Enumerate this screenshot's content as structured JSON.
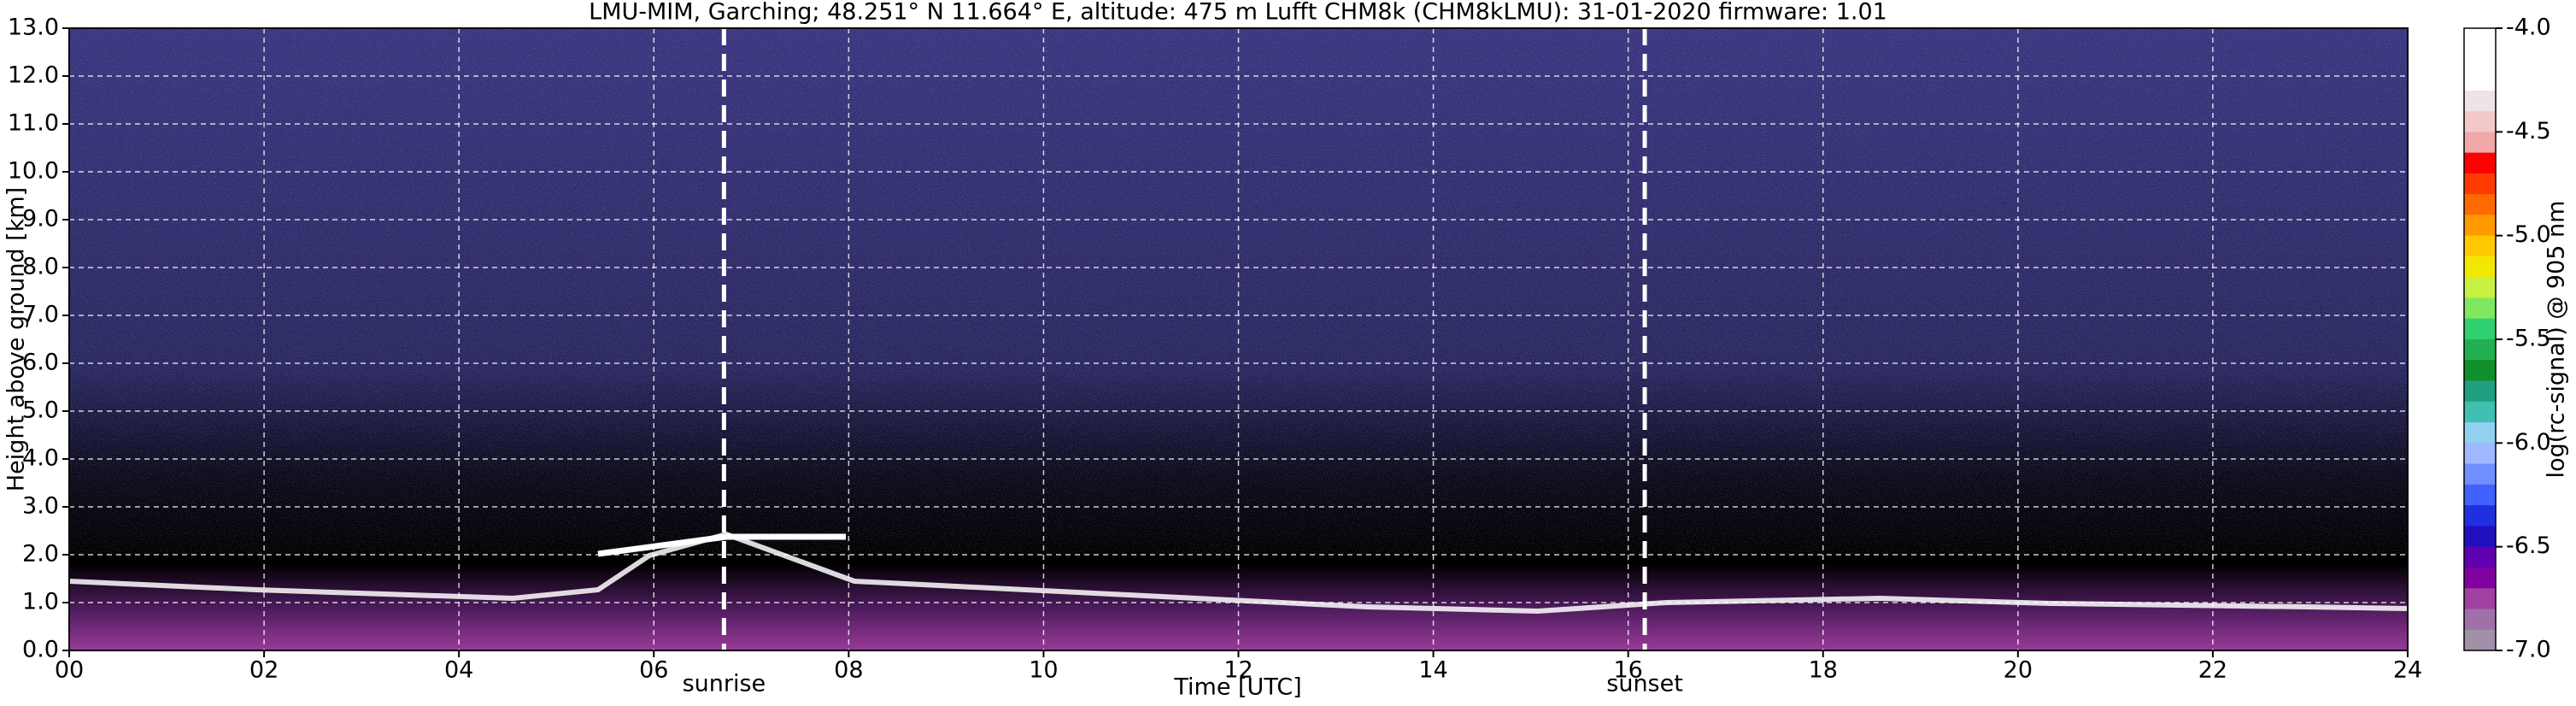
{
  "chart_data": {
    "type": "heatmap",
    "title": "LMU-MIM, Garching; 48.251° N 11.664° E, altitude: 475 m    Lufft CHM8k (CHM8kLMU): 31-01-2020    firmware: 1.01",
    "xlabel": "Time [UTC]",
    "ylabel": "Height above ground [km]",
    "xlim": [
      0,
      24
    ],
    "xticks": [
      {
        "value": 0,
        "label": "00"
      },
      {
        "value": 2,
        "label": "02"
      },
      {
        "value": 4,
        "label": "04"
      },
      {
        "value": 6,
        "label": "06"
      },
      {
        "value": 8,
        "label": "08"
      },
      10,
      12,
      14,
      16,
      18,
      20,
      22,
      24
    ],
    "ylim": [
      0,
      13
    ],
    "yticks": [
      {
        "value": 0,
        "label": "0.0"
      },
      {
        "value": 1,
        "label": "1.0"
      },
      {
        "value": 2,
        "label": "2.0"
      },
      {
        "value": 3,
        "label": "3.0"
      },
      {
        "value": 4,
        "label": "4.0"
      },
      {
        "value": 5,
        "label": "5.0"
      },
      {
        "value": 6,
        "label": "6.0"
      },
      {
        "value": 7,
        "label": "7.0"
      },
      {
        "value": 8,
        "label": "8.0"
      },
      {
        "value": 9,
        "label": "9.0"
      },
      {
        "value": 10,
        "label": "10.0"
      },
      {
        "value": 11,
        "label": "11.0"
      },
      {
        "value": 12,
        "label": "12.0"
      },
      {
        "value": 13,
        "label": "13.0"
      }
    ],
    "grid": true,
    "vlines": [
      {
        "x": 6.72,
        "label": "sunrise"
      },
      {
        "x": 16.17,
        "label": "sunset"
      }
    ],
    "colorbar": {
      "label": "log(rc-signal) @ 905 nm",
      "lim": [
        -7,
        -4
      ],
      "ticks": [
        {
          "value": -4,
          "label": "-4.0"
        },
        -4.5,
        {
          "value": -5,
          "label": "-5.0"
        },
        -5.5,
        {
          "value": -6,
          "label": "-6.0"
        },
        -6.5,
        {
          "value": -7,
          "label": "-7.0"
        }
      ],
      "colors": [
        "#ffffff",
        "#ffffff",
        "#ffffff",
        "#ece4e6",
        "#f2c8c8",
        "#f2a8a8",
        "#ff0000",
        "#ff3a00",
        "#ff6a00",
        "#ff9a00",
        "#ffc800",
        "#f0e800",
        "#c8f040",
        "#80e860",
        "#30d070",
        "#20b050",
        "#10902a",
        "#20a080",
        "#40c0b0",
        "#90d0f0",
        "#a0b8ff",
        "#7090ff",
        "#4060ff",
        "#2030e0",
        "#2010c0",
        "#6000b0",
        "#8000a0",
        "#a040a0",
        "#a070a8",
        "#a090a8"
      ]
    }
  }
}
